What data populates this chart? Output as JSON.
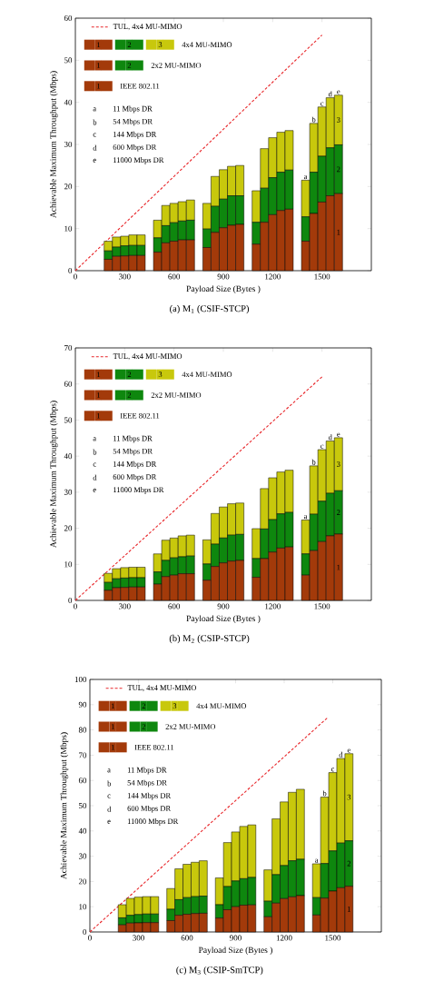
{
  "chart_data": [
    {
      "type": "bar",
      "stacked": true,
      "title": "(a) M$_{1}$ (CSIF-STCP)",
      "xlabel": "Payload Size (Bytes )",
      "ylabel": "Achievable Maximum Throughput (Mbps)",
      "legend": "top left",
      "x": [
        200,
        250,
        300,
        350,
        400,
        500,
        550,
        600,
        650,
        700,
        800,
        850,
        900,
        950,
        1000,
        1100,
        1150,
        1200,
        1250,
        1300,
        1400,
        1450,
        1500,
        1550,
        1600
      ],
      "xlim": [
        0,
        1800
      ],
      "xticks": [
        0,
        300,
        600,
        900,
        1200,
        1500
      ],
      "ylim": [
        0,
        60
      ],
      "yticks": [
        0,
        10,
        20,
        30,
        40,
        50,
        60
      ],
      "series": [
        {
          "name": "1",
          "color": "#a33a0a",
          "values": [
            2.7,
            3.4,
            3.5,
            3.6,
            3.6,
            4.4,
            6.6,
            7.0,
            7.3,
            7.3,
            5.5,
            9.1,
            10.2,
            10.8,
            11.0,
            6.3,
            11.5,
            13.3,
            14.3,
            14.6,
            7.0,
            13.6,
            16.3,
            17.8,
            18.3
          ]
        },
        {
          "name": "2",
          "color": "#0e870e",
          "values": [
            2.0,
            2.2,
            2.4,
            2.4,
            2.4,
            3.4,
            4.1,
            4.4,
            4.5,
            4.7,
            4.4,
            6.2,
            6.8,
            7.0,
            6.8,
            5.2,
            8.1,
            8.8,
            9.1,
            9.3,
            5.8,
            9.8,
            10.9,
            11.4,
            11.6
          ]
        },
        {
          "name": "3",
          "color": "#c8c80c",
          "values": [
            2.3,
            2.4,
            2.3,
            2.5,
            2.5,
            4.2,
            4.8,
            4.6,
            4.6,
            4.8,
            6.1,
            7.1,
            7.0,
            7.0,
            7.2,
            7.5,
            9.4,
            9.5,
            9.5,
            9.4,
            8.7,
            11.6,
            11.7,
            11.9,
            11.8
          ]
        },
        {
          "name": "TUL, 4x4 MU-MIMO",
          "type": "line",
          "line_style": "dashed",
          "color": "#e8262a",
          "x": [
            0,
            1500
          ],
          "values": [
            0,
            56
          ]
        }
      ],
      "annotations": [
        "4x4 MU-MIMO",
        "2x2 MU-MIMO",
        "IEEE 802.11",
        "a",
        "11 Mbps DR",
        "b",
        "54 Mbps DR",
        "c",
        "144 Mbps DR",
        "d",
        "600 Mbps DR",
        "e",
        "11000 Mbps DR",
        {
          "text": "a",
          "x": 1400,
          "y": 21.5
        },
        {
          "text": "b",
          "x": 1450,
          "y": 35.0
        },
        {
          "text": "c",
          "x": 1500,
          "y": 38.9
        },
        {
          "text": "d",
          "x": 1550,
          "y": 41.1
        },
        {
          "text": "e",
          "x": 1600,
          "y": 41.7
        }
      ]
    },
    {
      "type": "bar",
      "stacked": true,
      "title": "(b) M$_{2}$ (CSIP-STCP)",
      "xlabel": "Payload Size (Bytes )",
      "ylabel": "Achievable Maximum Throughput (Mbps)",
      "legend": "top left",
      "x": [
        200,
        250,
        300,
        350,
        400,
        500,
        550,
        600,
        650,
        700,
        800,
        850,
        900,
        950,
        1000,
        1100,
        1150,
        1200,
        1250,
        1300,
        1400,
        1450,
        1500,
        1550,
        1600
      ],
      "xlim": [
        0,
        1800
      ],
      "xticks": [
        0,
        300,
        600,
        900,
        1200,
        1500
      ],
      "ylim": [
        0,
        70
      ],
      "yticks": [
        0,
        10,
        20,
        30,
        40,
        50,
        60,
        70
      ],
      "series": [
        {
          "name": "1",
          "color": "#a33a0a",
          "values": [
            2.8,
            3.5,
            3.6,
            3.7,
            3.7,
            4.5,
            6.6,
            7.0,
            7.4,
            7.4,
            5.6,
            9.4,
            10.4,
            10.9,
            11.1,
            6.4,
            11.6,
            13.4,
            14.5,
            14.8,
            7.0,
            13.8,
            16.3,
            17.9,
            18.4
          ]
        },
        {
          "name": "2",
          "color": "#0e870e",
          "values": [
            2.2,
            2.5,
            2.6,
            2.6,
            2.6,
            3.4,
            4.5,
            4.8,
            4.7,
            4.9,
            4.5,
            6.2,
            6.9,
            7.2,
            7.2,
            5.2,
            8.2,
            9.0,
            9.5,
            9.6,
            5.9,
            10.1,
            11.2,
            11.8,
            12.0
          ]
        },
        {
          "name": "3",
          "color": "#c8c80c",
          "values": [
            2.5,
            2.8,
            2.9,
            2.9,
            2.9,
            5.0,
            5.6,
            5.5,
            5.8,
            5.8,
            6.7,
            8.5,
            8.6,
            8.7,
            8.7,
            8.3,
            11.2,
            11.6,
            11.6,
            11.7,
            9.4,
            13.4,
            14.3,
            14.5,
            14.7
          ]
        },
        {
          "name": "TUL, 4x4 MU-MIMO",
          "type": "line",
          "line_style": "dashed",
          "color": "#e8262a",
          "x": [
            0,
            1500
          ],
          "values": [
            0,
            62
          ]
        }
      ],
      "annotations": [
        "4x4 MU-MIMO",
        "2x2 MU-MIMO",
        "IEEE 802.11",
        "a",
        "11 Mbps DR",
        "b",
        "54 Mbps DR",
        "c",
        "144 Mbps DR",
        "d",
        "600 Mbps DR",
        "e",
        "11000 Mbps DR",
        {
          "text": "a",
          "x": 1400,
          "y": 22.3
        },
        {
          "text": "b",
          "x": 1450,
          "y": 37.3
        },
        {
          "text": "c",
          "x": 1500,
          "y": 41.8
        },
        {
          "text": "d",
          "x": 1550,
          "y": 44.2
        },
        {
          "text": "e",
          "x": 1600,
          "y": 45.1
        }
      ]
    },
    {
      "type": "bar",
      "stacked": true,
      "title": "(c) M$_{3}$ (CSIP-SmTCP)",
      "xlabel": "Payload Size (Bytes )",
      "ylabel": "Achievable Maximum Throughput (Mbps)",
      "legend": "top left",
      "x": [
        200,
        250,
        300,
        350,
        400,
        500,
        550,
        600,
        650,
        700,
        800,
        850,
        900,
        950,
        1000,
        1100,
        1150,
        1200,
        1250,
        1300,
        1400,
        1450,
        1500,
        1550,
        1600
      ],
      "xlim": [
        0,
        1800
      ],
      "xticks": [
        0,
        300,
        600,
        900,
        1200,
        1500
      ],
      "ylim": [
        0,
        100
      ],
      "yticks": [
        0,
        10,
        20,
        30,
        40,
        50,
        60,
        70,
        80,
        90,
        100
      ],
      "series": [
        {
          "name": "1",
          "color": "#a33a0a",
          "values": [
            2.8,
            3.5,
            3.6,
            3.7,
            3.7,
            4.5,
            6.6,
            7.0,
            7.3,
            7.4,
            5.5,
            8.8,
            10.0,
            10.6,
            10.7,
            6.0,
            11.4,
            13.2,
            13.9,
            14.4,
            6.7,
            13.4,
            16.2,
            17.5,
            18.1
          ]
        },
        {
          "name": "2",
          "color": "#0e870e",
          "values": [
            2.8,
            3.1,
            3.3,
            3.4,
            3.4,
            4.5,
            6.2,
            6.6,
            6.7,
            6.8,
            5.3,
            9.2,
            10.2,
            10.5,
            10.9,
            6.2,
            11.3,
            13.1,
            14.3,
            14.4,
            6.9,
            13.7,
            15.9,
            17.7,
            18.0
          ]
        },
        {
          "name": "3",
          "color": "#c8c80c",
          "values": [
            5.2,
            6.7,
            6.9,
            6.9,
            6.9,
            8.2,
            12.2,
            13.2,
            13.6,
            14.0,
            10.6,
            17.4,
            19.4,
            20.7,
            20.8,
            12.4,
            22.1,
            25.2,
            27.1,
            27.7,
            13.4,
            26.3,
            31.0,
            33.5,
            34.5
          ]
        },
        {
          "name": "TUL, 4x4 MU-MIMO",
          "type": "line",
          "line_style": "dashed",
          "color": "#e8262a",
          "x": [
            0,
            1470
          ],
          "values": [
            0,
            85
          ]
        }
      ],
      "annotations": [
        "4x4 MU-MIMO",
        "2x2 MU-MIMO",
        "IEEE 802.11",
        "a",
        "11 Mbps DR",
        "b",
        "54 Mbps DR",
        "c",
        "144 Mbps DR",
        "d",
        "600 Mbps DR",
        "e",
        "11000 Mbps DR",
        {
          "text": "a",
          "x": 1400,
          "y": 27.0
        },
        {
          "text": "b",
          "x": 1450,
          "y": 53.4
        },
        {
          "text": "c",
          "x": 1500,
          "y": 63.1
        },
        {
          "text": "d",
          "x": 1550,
          "y": 68.7
        },
        {
          "text": "e",
          "x": 1600,
          "y": 70.6
        }
      ]
    }
  ]
}
